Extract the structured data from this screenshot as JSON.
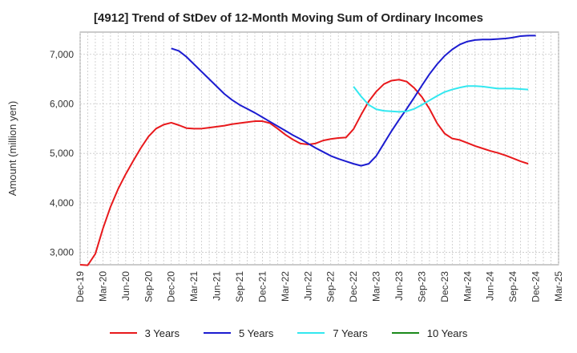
{
  "chart_data": {
    "type": "line",
    "title": "[4912]  Trend of StDev of 12-Month Moving Sum of Ordinary Incomes",
    "ylabel": "Amount (million yen)",
    "xlabel": "",
    "ylim": [
      2750,
      7450
    ],
    "yticks": [
      3000,
      4000,
      5000,
      6000,
      7000
    ],
    "ytick_labels": [
      "3,000",
      "4,000",
      "5,000",
      "6,000",
      "7,000"
    ],
    "x_categories": [
      "Dec-19",
      "Mar-20",
      "Jun-20",
      "Sep-20",
      "Dec-20",
      "Mar-21",
      "Jun-21",
      "Sep-21",
      "Dec-21",
      "Mar-22",
      "Jun-22",
      "Sep-22",
      "Dec-22",
      "Mar-23",
      "Jun-23",
      "Sep-23",
      "Dec-23",
      "Mar-24",
      "Jun-24",
      "Sep-24",
      "Dec-24",
      "Mar-25"
    ],
    "grid": true,
    "legend_position": "bottom",
    "series": [
      {
        "name": "3 Years",
        "color": "#e8191c",
        "start_index": 0,
        "values": [
          2750,
          2740,
          2970,
          3480,
          3920,
          4280,
          4580,
          4850,
          5110,
          5340,
          5500,
          5580,
          5620,
          5570,
          5510,
          5500,
          5500,
          5520,
          5540,
          5560,
          5590,
          5610,
          5630,
          5650,
          5650,
          5610,
          5500,
          5380,
          5280,
          5200,
          5180,
          5200,
          5260,
          5290,
          5310,
          5320,
          5490,
          5780,
          6050,
          6250,
          6400,
          6470,
          6490,
          6450,
          6320,
          6140,
          5900,
          5610,
          5400,
          5300,
          5270,
          5210,
          5150,
          5100,
          5050,
          5010,
          4960,
          4900,
          4840,
          4790
        ]
      },
      {
        "name": "5 Years",
        "color": "#1c1cd0",
        "start_index": 12,
        "values": [
          7120,
          7070,
          6950,
          6800,
          6650,
          6500,
          6350,
          6200,
          6080,
          5980,
          5900,
          5820,
          5730,
          5640,
          5550,
          5460,
          5370,
          5290,
          5200,
          5110,
          5030,
          4950,
          4890,
          4840,
          4790,
          4750,
          4790,
          4950,
          5200,
          5450,
          5680,
          5900,
          6130,
          6370,
          6600,
          6800,
          6970,
          7100,
          7200,
          7260,
          7290,
          7300,
          7300,
          7310,
          7320,
          7340,
          7370,
          7380,
          7380
        ]
      },
      {
        "name": "7 Years",
        "color": "#33e8f0",
        "start_index": 36,
        "values": [
          6350,
          6150,
          5980,
          5890,
          5860,
          5850,
          5840,
          5850,
          5900,
          5980,
          6070,
          6160,
          6240,
          6290,
          6330,
          6360,
          6360,
          6350,
          6330,
          6310,
          6310,
          6310,
          6300,
          6290
        ]
      },
      {
        "name": "10 Years",
        "color": "#1b8a1b",
        "start_index": 0,
        "values": []
      }
    ]
  }
}
